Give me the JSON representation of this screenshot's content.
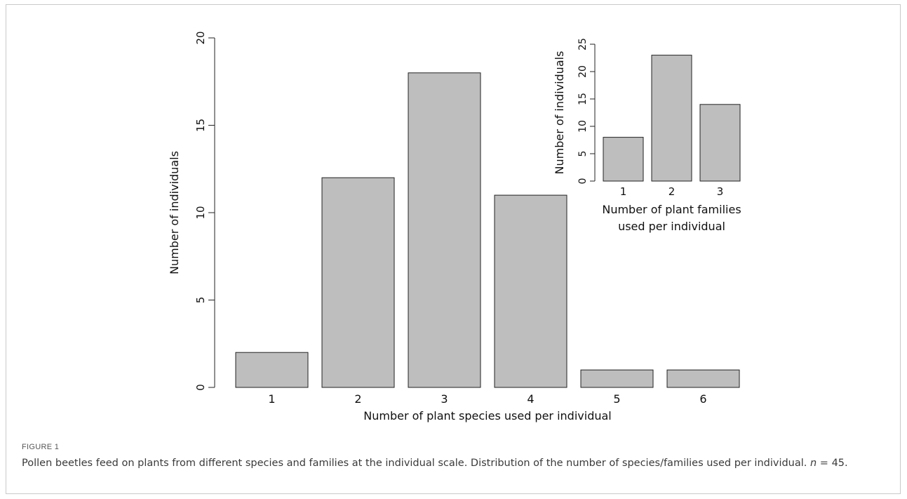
{
  "chart_data": [
    {
      "id": "main",
      "type": "bar",
      "categories": [
        "1",
        "2",
        "3",
        "4",
        "5",
        "6"
      ],
      "values": [
        2,
        12,
        18,
        11,
        1,
        1
      ],
      "xlabel": "Number of plant species used per individual",
      "ylabel": "Number of individuals",
      "ylim": [
        0,
        20
      ],
      "yticks": [
        0,
        5,
        10,
        15,
        20
      ],
      "bar_color": "#bebebe",
      "grid": false
    },
    {
      "id": "inset",
      "type": "bar",
      "categories": [
        "1",
        "2",
        "3"
      ],
      "values": [
        8,
        23,
        14
      ],
      "xlabel_lines": [
        "Number of plant families",
        "used per individual"
      ],
      "ylabel": "Number of individuals",
      "ylim": [
        0,
        25
      ],
      "yticks": [
        0,
        5,
        10,
        15,
        20,
        25
      ],
      "bar_color": "#bebebe",
      "grid": false,
      "placement": "top-right"
    }
  ],
  "caption": {
    "label": "FIGURE 1",
    "text_before": "Pollen beetles feed on plants from different species and families at the individual scale. Distribution of the number of species/families used per individual. ",
    "n_symbol": "n",
    "text_after": " = 45."
  }
}
